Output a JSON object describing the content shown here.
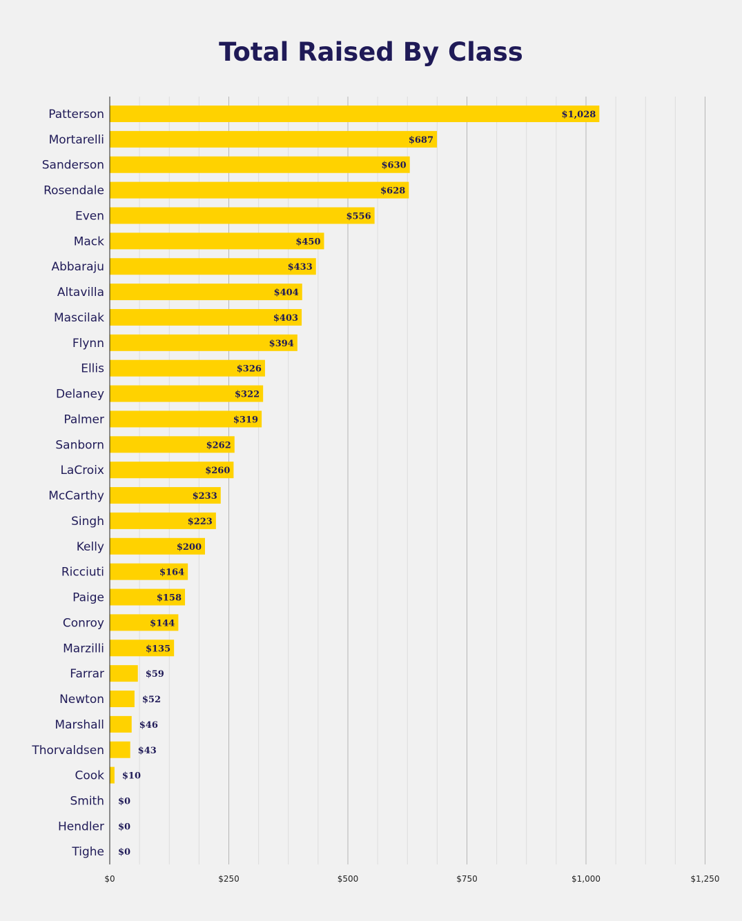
{
  "chart_data": {
    "type": "bar",
    "orientation": "horizontal",
    "title": "Total Raised By Class",
    "xlabel": "",
    "ylabel": "",
    "xlim": [
      0,
      1300
    ],
    "xticks": [
      0,
      250,
      500,
      750,
      1000,
      1250
    ],
    "xtick_labels": [
      "$0",
      "$250",
      "$500",
      "$750",
      "$1,000",
      "$1,250"
    ],
    "grid": true,
    "bar_color": "#ffd200",
    "text_color": "#1f1a57",
    "categories": [
      "Patterson",
      "Mortarelli",
      "Sanderson",
      "Rosendale",
      "Even",
      "Mack",
      "Abbaraju",
      "Altavilla",
      "Mascilak",
      "Flynn",
      "Ellis",
      "Delaney",
      "Palmer",
      "Sanborn",
      "LaCroix",
      "McCarthy",
      "Singh",
      "Kelly",
      "Ricciuti",
      "Paige",
      "Conroy",
      "Marzilli",
      "Farrar",
      "Newton",
      "Marshall",
      "Thorvaldsen",
      "Cook",
      "Smith",
      "Hendler",
      "Tighe"
    ],
    "values": [
      1028,
      687,
      630,
      628,
      556,
      450,
      433,
      404,
      403,
      394,
      326,
      322,
      319,
      262,
      260,
      233,
      223,
      200,
      164,
      158,
      144,
      135,
      59,
      52,
      46,
      43,
      10,
      0,
      0,
      0
    ],
    "value_labels": [
      "$1,028",
      "$687",
      "$630",
      "$628",
      "$556",
      "$450",
      "$433",
      "$404",
      "$403",
      "$394",
      "$326",
      "$322",
      "$319",
      "$262",
      "$260",
      "$233",
      "$223",
      "$200",
      "$164",
      "$158",
      "$144",
      "$135",
      "$59",
      "$52",
      "$46",
      "$43",
      "$10",
      "$0",
      "$0",
      "$0"
    ]
  }
}
